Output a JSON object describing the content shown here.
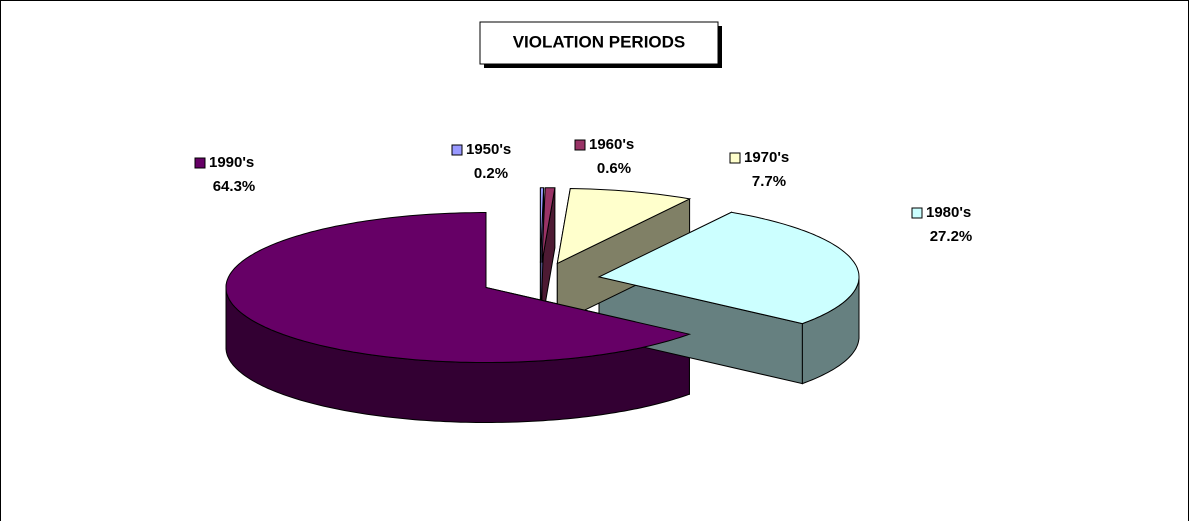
{
  "chart_data": {
    "type": "pie",
    "title": "VIOLATION PERIODS",
    "categories": [
      "1950's",
      "1960's",
      "1970's",
      "1980's",
      "1990's"
    ],
    "values": [
      0.2,
      0.6,
      7.7,
      27.2,
      64.3
    ],
    "value_labels": [
      "0.2%",
      "0.6%",
      "7.7%",
      "27.2%",
      "64.3%"
    ],
    "colors": [
      "#9999ff",
      "#993366",
      "#ffffcc",
      "#ccffff",
      "#660066"
    ]
  }
}
